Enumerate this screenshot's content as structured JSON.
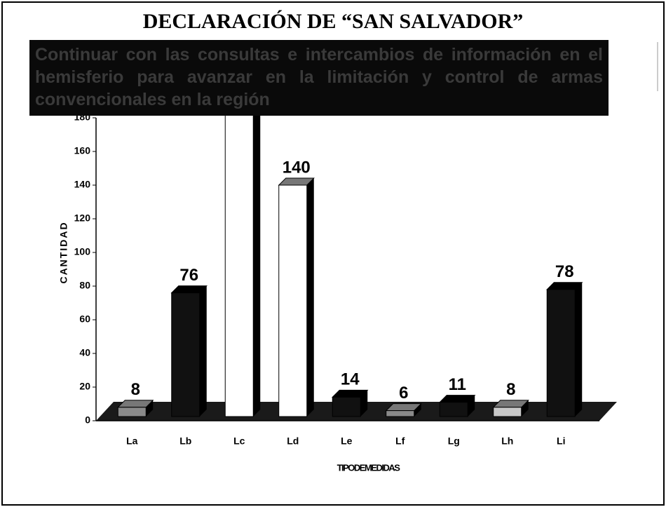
{
  "chart_data": {
    "type": "bar3d",
    "title": "DECLARACIÓN DE “SAN SALVADOR”",
    "subtitle": "Continuar con las consultas e intercambios de información en el hemisferio para avanzar en la limitación y control de armas convencionales en la región",
    "ylabel": "CANTIDAD",
    "xlabel": "TIPODEMEDIDAS",
    "categories": [
      "La",
      "Lb",
      "Lc",
      "Ld",
      "Le",
      "Lf",
      "Lg",
      "Lh",
      "Li"
    ],
    "values": [
      8,
      76,
      195,
      140,
      14,
      6,
      11,
      8,
      78
    ],
    "colors": [
      "#8a8a8a",
      "#111111",
      "#ffffff",
      "#ffffff",
      "#111111",
      "#8a8a8a",
      "#111111",
      "#c8c8c8",
      "#111111"
    ],
    "ylim": [
      0,
      180
    ],
    "yticks": [
      0,
      20,
      40,
      60,
      80,
      100,
      120,
      140,
      160,
      180
    ]
  }
}
